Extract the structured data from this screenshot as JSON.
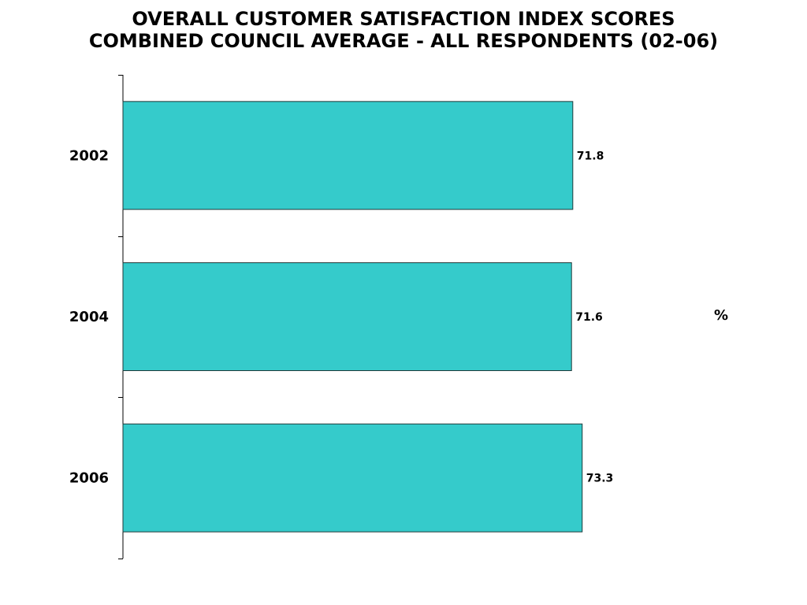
{
  "chart_data": {
    "type": "bar",
    "orientation": "horizontal",
    "title": "OVERALL CUSTOMER SATISFACTION INDEX SCORES",
    "subtitle": "COMBINED COUNCIL AVERAGE - ALL RESPONDENTS (02-06)",
    "categories": [
      "2002",
      "2004",
      "2006"
    ],
    "values": [
      71.8,
      71.6,
      73.3
    ],
    "value_labels": [
      "71.8",
      "71.6",
      "73.3"
    ],
    "unit_label": "%",
    "xlim": [
      0,
      100
    ],
    "bar_color": "#35CBCB",
    "grid": false,
    "legend": "none"
  }
}
